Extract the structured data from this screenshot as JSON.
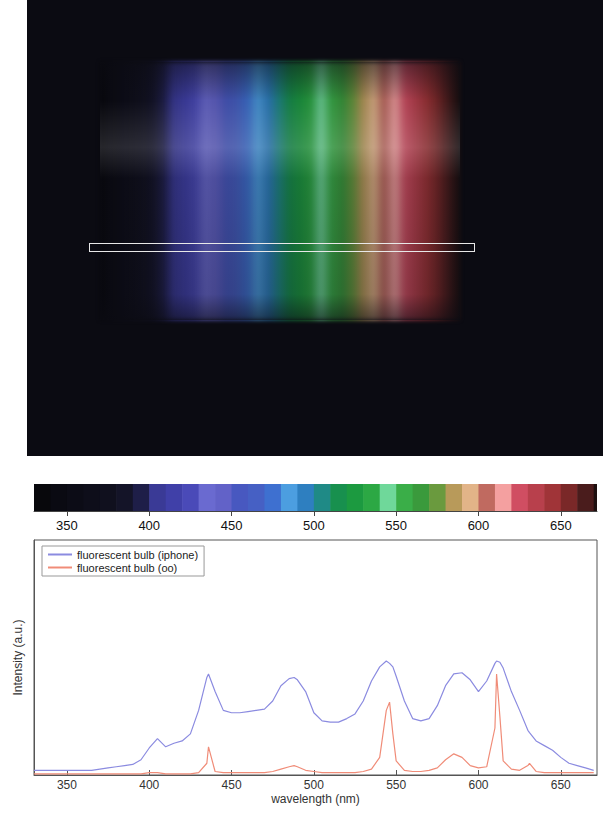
{
  "chart_data": [
    {
      "type": "colorbar",
      "x": [
        330,
        340,
        350,
        360,
        370,
        380,
        390,
        400,
        410,
        420,
        430,
        440,
        450,
        460,
        470,
        480,
        490,
        500,
        510,
        520,
        530,
        540,
        550,
        560,
        570,
        580,
        590,
        600,
        610,
        620,
        630,
        640,
        650,
        660,
        670
      ],
      "colors": [
        "#08080c",
        "#0a0a12",
        "#0c0c16",
        "#0e0e1a",
        "#10101e",
        "#141428",
        "#1e1e48",
        "#3a3a96",
        "#4040a8",
        "#4a4ab8",
        "#6a6ad0",
        "#6262c8",
        "#4858c0",
        "#4660c4",
        "#3e70d0",
        "#4c9ee0",
        "#2e7fc0",
        "#1f8a86",
        "#18904e",
        "#1c9a40",
        "#2ca844",
        "#6fd89a",
        "#3aae48",
        "#3a9a3c",
        "#6a9a3e",
        "#b89a5a",
        "#e2b488",
        "#c06a60",
        "#f4a0a0",
        "#d04e62",
        "#b8404c",
        "#a03438",
        "#7a2828",
        "#4a1c1c",
        "#1e1010"
      ],
      "xlim": [
        330,
        672
      ],
      "xticks": [
        350,
        400,
        450,
        500,
        550,
        600,
        650
      ],
      "tick_labels": "x"
    },
    {
      "type": "line",
      "xlabel": "wavelength (nm)",
      "ylabel": "Intensity (a.u.)",
      "x": [
        330,
        335,
        340,
        345,
        350,
        355,
        360,
        365,
        370,
        375,
        380,
        385,
        390,
        395,
        400,
        405,
        410,
        415,
        420,
        425,
        430,
        435,
        436,
        440,
        445,
        450,
        455,
        460,
        465,
        470,
        475,
        480,
        485,
        488,
        490,
        495,
        500,
        505,
        510,
        515,
        520,
        525,
        530,
        535,
        540,
        544,
        546,
        548,
        550,
        555,
        560,
        565,
        570,
        575,
        580,
        585,
        590,
        595,
        600,
        605,
        610,
        611,
        613,
        615,
        620,
        625,
        630,
        631,
        635,
        640,
        645,
        650,
        655,
        660,
        665,
        670
      ],
      "series": [
        {
          "name": "fluorescent bulb (iphone)",
          "color": "#8b8be0",
          "values": [
            0.04,
            0.04,
            0.04,
            0.04,
            0.04,
            0.04,
            0.04,
            0.04,
            0.05,
            0.06,
            0.07,
            0.08,
            0.09,
            0.13,
            0.23,
            0.31,
            0.24,
            0.27,
            0.29,
            0.35,
            0.55,
            0.83,
            0.86,
            0.71,
            0.55,
            0.53,
            0.53,
            0.54,
            0.55,
            0.56,
            0.63,
            0.76,
            0.82,
            0.83,
            0.81,
            0.71,
            0.53,
            0.46,
            0.45,
            0.45,
            0.48,
            0.52,
            0.63,
            0.8,
            0.92,
            0.97,
            0.95,
            0.92,
            0.84,
            0.63,
            0.48,
            0.46,
            0.48,
            0.59,
            0.76,
            0.86,
            0.87,
            0.81,
            0.71,
            0.8,
            0.95,
            0.97,
            0.96,
            0.91,
            0.71,
            0.55,
            0.38,
            0.36,
            0.29,
            0.25,
            0.21,
            0.15,
            0.1,
            0.08,
            0.06,
            0.04
          ]
        },
        {
          "name": "fluorescent bulb (oo)",
          "color": "#f08c78",
          "values": [
            0.01,
            0.01,
            0.01,
            0.01,
            0.01,
            0.01,
            0.01,
            0.01,
            0.01,
            0.01,
            0.01,
            0.01,
            0.01,
            0.01,
            0.02,
            0.02,
            0.01,
            0.01,
            0.01,
            0.01,
            0.02,
            0.1,
            0.24,
            0.03,
            0.02,
            0.02,
            0.02,
            0.02,
            0.02,
            0.02,
            0.03,
            0.05,
            0.07,
            0.08,
            0.07,
            0.04,
            0.03,
            0.02,
            0.02,
            0.02,
            0.02,
            0.02,
            0.03,
            0.05,
            0.15,
            0.55,
            0.62,
            0.35,
            0.12,
            0.04,
            0.03,
            0.03,
            0.04,
            0.06,
            0.13,
            0.18,
            0.15,
            0.08,
            0.06,
            0.07,
            0.4,
            0.86,
            0.5,
            0.12,
            0.05,
            0.04,
            0.08,
            0.1,
            0.03,
            0.02,
            0.02,
            0.02,
            0.02,
            0.02,
            0.02,
            0.02
          ]
        }
      ],
      "xlim": [
        330,
        672
      ],
      "xticks": [
        350,
        400,
        450,
        500,
        550,
        600,
        650
      ],
      "ylim": [
        0,
        2
      ],
      "yticks": [],
      "grid": false,
      "legend": "upper left",
      "tick_labels": "x"
    }
  ]
}
